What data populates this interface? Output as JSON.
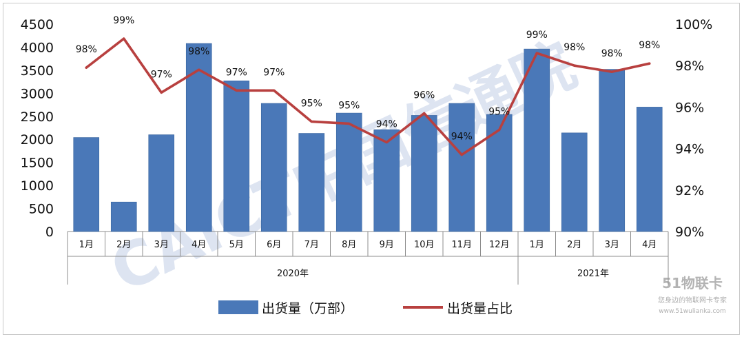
{
  "chart_data": {
    "type": "bar",
    "categories": [
      "1月",
      "2月",
      "3月",
      "4月",
      "5月",
      "6月",
      "7月",
      "8月",
      "9月",
      "10月",
      "11月",
      "12月",
      "1月",
      "2月",
      "3月",
      "4月"
    ],
    "groups": [
      {
        "label": "2020年",
        "start": 0,
        "end": 11
      },
      {
        "label": "2021年",
        "start": 12,
        "end": 15
      }
    ],
    "series": [
      {
        "name": "出货量（万部）",
        "type": "bar",
        "axis": "left",
        "color": "#4a78b8",
        "values": [
          2040,
          640,
          2100,
          4080,
          3270,
          2780,
          2130,
          2570,
          2210,
          2520,
          2780,
          2540,
          3960,
          2140,
          3520,
          2700
        ]
      },
      {
        "name": "出货量占比",
        "type": "line",
        "axis": "right",
        "color": "#b8403f",
        "values": [
          97.9,
          99.3,
          96.7,
          97.8,
          96.8,
          96.8,
          95.3,
          95.2,
          94.3,
          95.7,
          93.7,
          94.9,
          98.6,
          98.0,
          97.7,
          98.1
        ],
        "labels": [
          "98%",
          "99%",
          "97%",
          "98%",
          "97%",
          "97%",
          "95%",
          "95%",
          "94%",
          "96%",
          "94%",
          "95%",
          "99%",
          "98%",
          "98%",
          "98%"
        ]
      }
    ],
    "left_axis": {
      "ylim": [
        0,
        4500
      ],
      "ticks": [
        "0",
        "500",
        "1000",
        "1500",
        "2000",
        "2500",
        "3000",
        "3500",
        "4000",
        "4500"
      ]
    },
    "right_axis": {
      "ylim": [
        90,
        100
      ],
      "ticks": [
        "90%",
        "92%",
        "94%",
        "96%",
        "98%",
        "100%"
      ]
    },
    "grid": false,
    "legend_position": "bottom",
    "title": "",
    "xlabel": "",
    "ylabel": ""
  },
  "watermark": {
    "text": "CAICT中国信通院",
    "site_logo": "51物联卡",
    "site_slogan": "您身边的物联网卡专家",
    "site_url": "www.51wulianka.com"
  }
}
